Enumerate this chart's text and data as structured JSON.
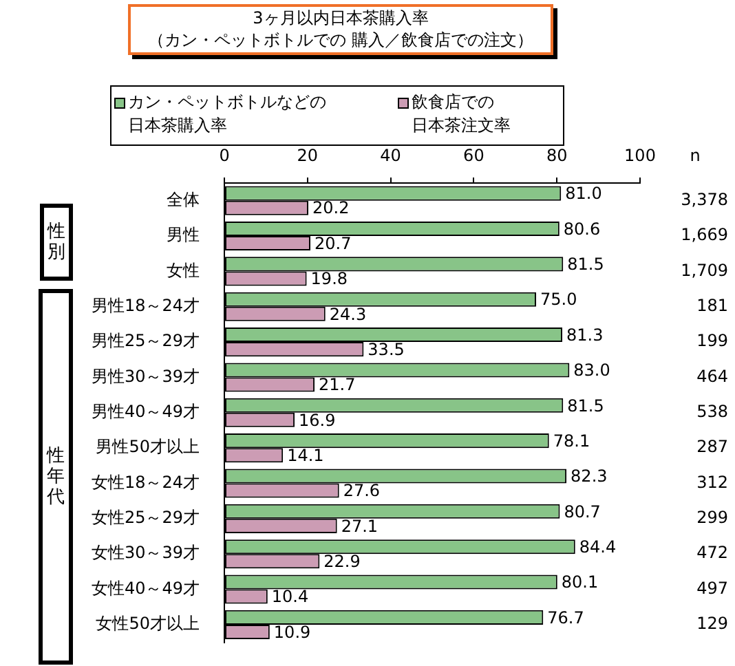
{
  "chart_data": {
    "type": "bar",
    "orientation": "horizontal",
    "title": "3ヶ月以内日本茶購入率",
    "subtitle": "（カン・ペットボトルでの 購入／飲食店での注文）",
    "categories": [
      "全体",
      "男性",
      "女性",
      "男性18～24才",
      "男性25～29才",
      "男性30～39才",
      "男性40～49才",
      "男性50才以上",
      "女性18～24才",
      "女性25～29才",
      "女性30～39才",
      "女性40～49才",
      "女性50才以上"
    ],
    "series": [
      {
        "name": "カン・ペットボトルなどの日本茶購入率",
        "color": "#88c488",
        "values": [
          81.0,
          80.6,
          81.5,
          75.0,
          81.3,
          83.0,
          81.5,
          78.1,
          82.3,
          80.7,
          84.4,
          80.1,
          76.7
        ],
        "value_labels": [
          "81.0",
          "80.6",
          "81.5",
          "75.0",
          "81.3",
          "83.0",
          "81.5",
          "78.1",
          "82.3",
          "80.7",
          "84.4",
          "80.1",
          "76.7"
        ]
      },
      {
        "name": "飲食店での日本茶注文率",
        "color": "#cc9cb4",
        "values": [
          20.2,
          20.7,
          19.8,
          24.3,
          33.5,
          21.7,
          16.9,
          14.1,
          27.6,
          27.1,
          22.9,
          10.4,
          10.9
        ],
        "value_labels": [
          "20.2",
          "20.7",
          "19.8",
          "24.3",
          "33.5",
          "21.7",
          "16.9",
          "14.1",
          "27.6",
          "27.1",
          "22.9",
          "10.4",
          "10.9"
        ]
      }
    ],
    "xlim": [
      0,
      100
    ],
    "xticks": [
      0,
      20,
      40,
      60,
      80,
      100
    ],
    "legend": "top",
    "annotations": [
      "性別",
      "性年代",
      "n",
      "3,378",
      "1,669",
      "1,709",
      "181",
      "199",
      "464",
      "538",
      "287",
      "312",
      "299",
      "472",
      "497",
      "129"
    ]
  }
}
